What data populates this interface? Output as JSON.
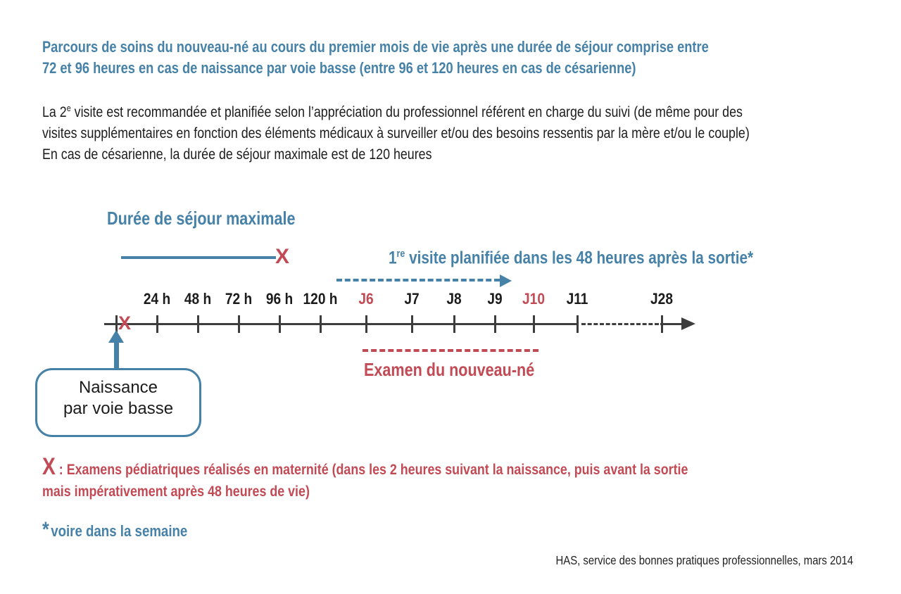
{
  "colors": {
    "blue": "#4681a7",
    "red": "#c24a55",
    "ink": "#1c1c1c",
    "axis": "#3d3d3d"
  },
  "header": {
    "lines": [
      "Parcours de soins du nouveau-né au cours du premier mois de vie après une durée de séjour comprise entre",
      "72 et 96 heures en cas de naissance par voie basse (entre 96 et 120 heures en cas de césarienne)"
    ]
  },
  "intro": {
    "line1_prefix": "La 2",
    "line1_sup": "e",
    "line1_rest": " visite est recommandée et planifiée selon l’appréciation du professionnel référent en charge du suivi (de même pour des",
    "line2": "visites supplémentaires en fonction des éléments médicaux à surveiller et/ou des besoins ressentis par la mère et/ou le couple)",
    "line3": "En cas de césarienne, la durée de séjour maximale est de 120 heures"
  },
  "timeline": {
    "stay_label": "Durée de séjour maximale",
    "visit_num": "1",
    "visit_sup": "re",
    "visit_rest": " visite planifiée dans les 48 heures après la sortie*",
    "exam_label": "Examen du nouveau-né",
    "x_marker": "X",
    "birth_box": {
      "line1": "Naissance",
      "line2": "par voie basse"
    },
    "ticks": [
      {
        "label": ""
      },
      {
        "label": "24 h"
      },
      {
        "label": "48 h"
      },
      {
        "label": "72 h"
      },
      {
        "label": "96 h"
      },
      {
        "label": "120 h"
      },
      {
        "label": "J6",
        "red": true
      },
      {
        "label": "J7"
      },
      {
        "label": "J8"
      },
      {
        "label": "J9"
      },
      {
        "label": "J10",
        "red": true
      },
      {
        "label": "J11"
      },
      {
        "label": "J28"
      }
    ]
  },
  "legend": {
    "marker": "X",
    "line1": " : Examens pédiatriques réalisés en maternité (dans les 2 heures suivant la naissance, puis avant la sortie",
    "line2": "mais impérativement après 48 heures de vie)"
  },
  "footnote": {
    "marker": "*",
    "text": "voire dans la semaine"
  },
  "footer": {
    "source": "HAS, service des bonnes pratiques professionnelles, mars 2014"
  }
}
